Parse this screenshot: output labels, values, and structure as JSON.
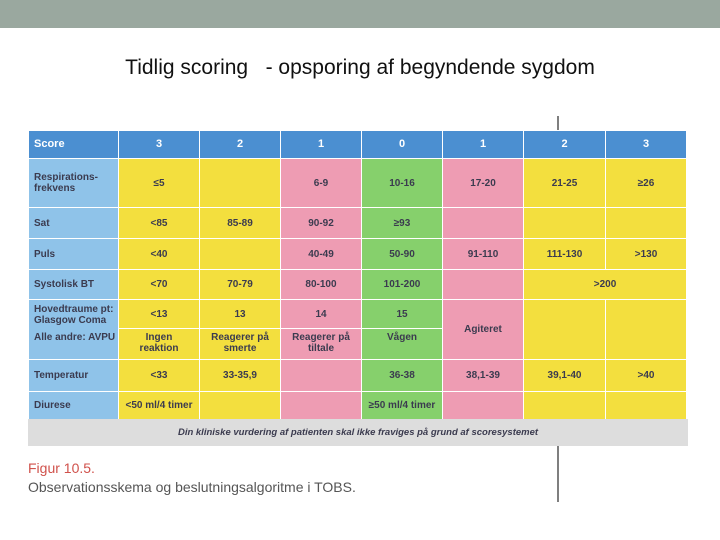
{
  "slide": {
    "title": "Tidlig scoring   - opsporing af begyndende sygdom"
  },
  "table": {
    "header": [
      "Score",
      "3",
      "2",
      "1",
      "0",
      "1",
      "2",
      "3"
    ],
    "rows": {
      "resp": {
        "label": "Respirations-\nfrekvens",
        "c0": "≤5",
        "c2": "6-9",
        "c3": "10-16",
        "c4": "17-20",
        "c5": "21-25",
        "c6": "≥26"
      },
      "sat": {
        "label": "Sat",
        "c0": "<85",
        "c1": "85-89",
        "c2": "90-92",
        "c3": "≥93"
      },
      "puls": {
        "label": "Puls",
        "c0": "<40",
        "c2": "40-49",
        "c3": "50-90",
        "c4": "91-110",
        "c5": "111-130",
        "c6": ">130"
      },
      "bt": {
        "label": "Systolisk BT",
        "c0": "<70",
        "c1": "70-79",
        "c2": "80-100",
        "c3": "101-200",
        "c5": ">200"
      },
      "gcs": {
        "label": "Hovedtraume pt:\nGlasgow Coma",
        "c0": "<13",
        "c1": "13",
        "c2": "14",
        "c3": "15"
      },
      "avpu": {
        "label": "Alle andre: AVPU",
        "c0": "Ingen\nreaktion",
        "c1": "Reagerer på\nsmerte",
        "c2": "Reagerer på\ntiltale",
        "c3": "Vågen",
        "c4": "Agiteret"
      },
      "temp": {
        "label": "Temperatur",
        "c0": "<33",
        "c1": "33-35,9",
        "c3": "36-38",
        "c4": "38,1-39",
        "c5": "39,1-40",
        "c6": ">40"
      },
      "diur": {
        "label": "Diurese",
        "c0": "<50 ml/4 timer",
        "c3": "≥50 ml/4 timer"
      }
    },
    "footnote": "Din kliniske vurdering af patienten skal ikke fraviges på grund af scoresystemet"
  },
  "figure": {
    "number": "Figur 10.5.",
    "caption": "Observationsskema og beslutningsalgoritme i TOBS."
  },
  "colors": {
    "header": "#4b8fd1",
    "label": "#8fc3e9",
    "yellow": "#f3df3e",
    "pink": "#ee9cb3",
    "green": "#86d06c"
  }
}
